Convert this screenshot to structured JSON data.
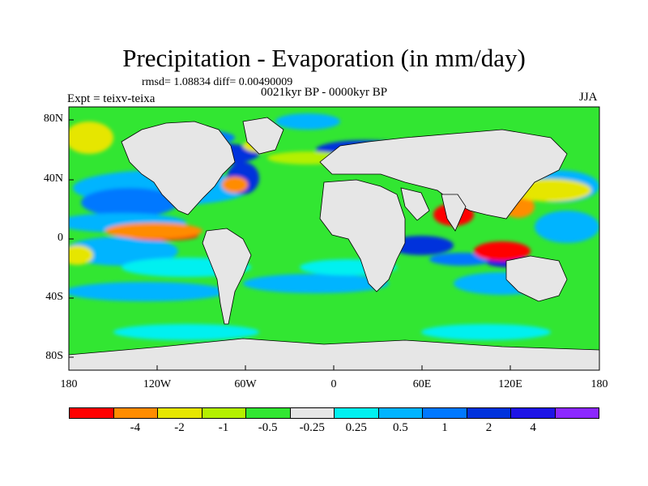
{
  "title": "Precipitation - Evaporation (in mm/day)",
  "stats": "rmsd= 1.08834 diff= 0.00490009",
  "period": "0021kyr BP - 0000kyr BP",
  "experiment": "Expt = teixv-teixa",
  "season": "JJA",
  "axes": {
    "lat_labels": [
      "80N",
      "40N",
      "0",
      "40S",
      "80S"
    ],
    "lon_labels": [
      "180",
      "120W",
      "60W",
      "0",
      "60E",
      "120E",
      "180"
    ]
  },
  "colorbar": {
    "colors": [
      "#ff0000",
      "#ff8c00",
      "#e6e600",
      "#b4f000",
      "#32e632",
      "#e6e6e6",
      "#00f0f0",
      "#00b4ff",
      "#0078ff",
      "#0032dc",
      "#1e14e6",
      "#8c28ff"
    ],
    "labels": [
      "-4",
      "-2",
      "-1",
      "-0.5",
      "-0.25",
      "0.25",
      "0.5",
      "1",
      "2",
      "4"
    ]
  },
  "legend_labels_note": ""
}
